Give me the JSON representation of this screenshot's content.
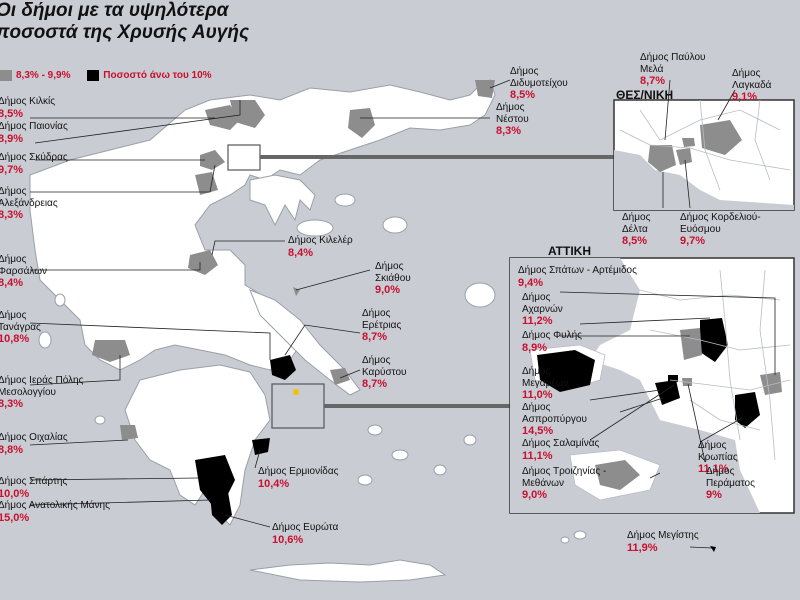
{
  "title": {
    "line1": "Οι δήμοι με τα υψηλότερα",
    "line2": "ποσοστά της Χρυσής Αυγής"
  },
  "legend": {
    "grey_label": "8,3% - 9,9%",
    "black_label": "Ποσοστό άνω του 10%",
    "grey_color": "#8d8d8d",
    "black_color": "#000000"
  },
  "colors": {
    "sea": "#c9ccd3",
    "land": "#ffffff",
    "border": "#9aa0a8",
    "percent": "#c8102e"
  },
  "insets": {
    "thessaloniki": "ΘΕΣ/ΝΙΚΗ",
    "attica": "ΑΤΤΙΚΗ"
  },
  "labels": [
    {
      "name": "Δήμος Κιλκίς",
      "pct": "8,5%",
      "tier": "grey"
    },
    {
      "name": "Δήμος Παιονίας",
      "pct": "8,9%",
      "tier": "grey"
    },
    {
      "name": "Δήμος Σκύδρας",
      "pct": "9,7%",
      "tier": "grey"
    },
    {
      "name": "Δήμος Αλεξάνδρειας",
      "pct": "8,3%",
      "tier": "grey"
    },
    {
      "name": "Δήμος Φαρσάλων",
      "pct": "8,4%",
      "tier": "grey"
    },
    {
      "name": "Δήμος Τανάγρας",
      "pct": "10,8%",
      "tier": "black"
    },
    {
      "name": "Δήμος Ιεράς Πόλης Μεσολογγίου",
      "pct": "8,3%",
      "tier": "grey"
    },
    {
      "name": "Δήμος Οιχαλίας",
      "pct": "8,8%",
      "tier": "grey"
    },
    {
      "name": "Δήμος Σπάρτης",
      "pct": "10,0%",
      "tier": "black"
    },
    {
      "name": "Δήμος Ανατολικής Μάνης",
      "pct": "15,0%",
      "tier": "black"
    },
    {
      "name": "Δήμος Ευρώτα",
      "pct": "10,6%",
      "tier": "black"
    },
    {
      "name": "Δήμος Ερμιονίδας",
      "pct": "10,4%",
      "tier": "black"
    },
    {
      "name": "Δήμος Κιλελέρ",
      "pct": "8,4%",
      "tier": "grey"
    },
    {
      "name": "Δήμος Σκιάθου",
      "pct": "9,0%",
      "tier": "grey"
    },
    {
      "name": "Δήμος Ερέτριας",
      "pct": "8,7%",
      "tier": "grey"
    },
    {
      "name": "Δήμος Καρύστου",
      "pct": "8,7%",
      "tier": "grey"
    },
    {
      "name": "Δήμος Διδυμοτείχου",
      "pct": "8,5%",
      "tier": "grey"
    },
    {
      "name": "Δήμος Νέστου",
      "pct": "8,3%",
      "tier": "grey"
    },
    {
      "name": "Δήμος Παύλου Μελά",
      "pct": "8,7%",
      "tier": "grey"
    },
    {
      "name": "Δήμος Λαγκαδά",
      "pct": "9,1%",
      "tier": "grey"
    },
    {
      "name": "Δήμος Δέλτα",
      "pct": "8,5%",
      "tier": "grey"
    },
    {
      "name": "Δήμος Κορδελιού-Ευόσμου",
      "pct": "9,7%",
      "tier": "grey"
    },
    {
      "name": "Δήμος Σπάτων - Αρτέμιδος",
      "pct": "9,4%",
      "tier": "grey"
    },
    {
      "name": "Δήμος Αχαρνών",
      "pct": "11,2%",
      "tier": "black"
    },
    {
      "name": "Δήμος Φυλής",
      "pct": "8,9%",
      "tier": "grey"
    },
    {
      "name": "Δήμος Μεγαρέων",
      "pct": "11,0%",
      "tier": "black"
    },
    {
      "name": "Δήμος Ασπροπύργου",
      "pct": "14,5%",
      "tier": "black"
    },
    {
      "name": "Δήμος Σαλαμίνας",
      "pct": "11,1%",
      "tier": "black"
    },
    {
      "name": "Δήμος Τροιζηνίας - Μεθάνων",
      "pct": "9,0%",
      "tier": "grey"
    },
    {
      "name": "Δήμος Κρωπίας",
      "pct": "11,1%",
      "tier": "black"
    },
    {
      "name": "Δήμος Περάματος",
      "pct": "9%",
      "tier": "grey"
    },
    {
      "name": "Δήμος Μεγίστης",
      "pct": "11,9%",
      "tier": "black"
    }
  ]
}
